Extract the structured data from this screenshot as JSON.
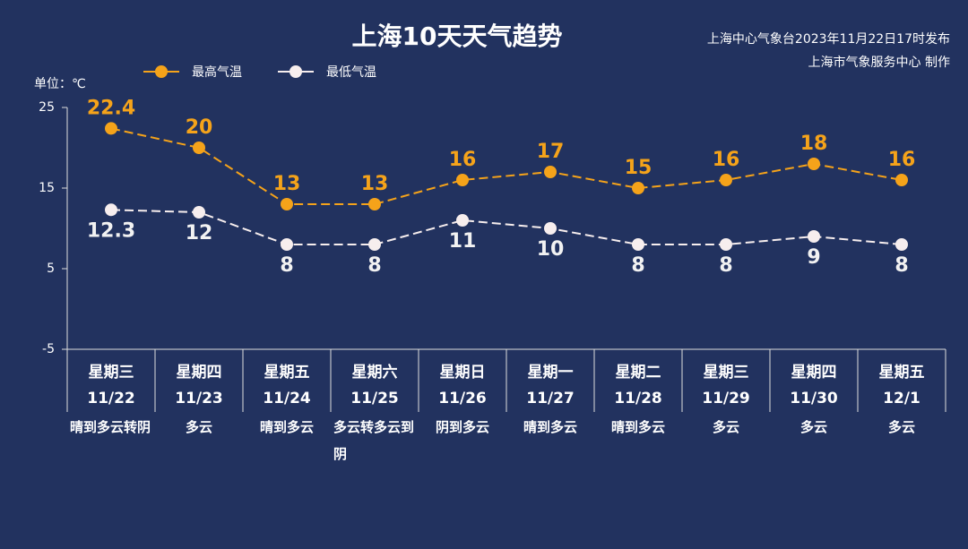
{
  "chart_data": {
    "type": "line",
    "title": "上海10天天气趋势",
    "source": "上海中心气象台2023年11月22日17时发布",
    "producer": "上海市气象服务中心 制作",
    "unit_label": "单位：℃",
    "weekdays": [
      "星期三",
      "星期四",
      "星期五",
      "星期六",
      "星期日",
      "星期一",
      "星期二",
      "星期三",
      "星期四",
      "星期五"
    ],
    "categories": [
      "11/22",
      "11/23",
      "11/24",
      "11/25",
      "11/26",
      "11/27",
      "11/28",
      "11/29",
      "11/30",
      "12/1"
    ],
    "weather": [
      "晴到多云转阴",
      "多云",
      "晴到多云",
      "多云转多云到阴",
      "阴到多云",
      "晴到多云",
      "晴到多云",
      "多云",
      "多云",
      "多云"
    ],
    "series": [
      {
        "name": "最高气温",
        "color": "#f5a31a",
        "values": [
          22.4,
          20,
          13,
          13,
          16,
          17,
          15,
          16,
          18,
          16
        ]
      },
      {
        "name": "最低气温",
        "color": "#f7eeee",
        "values": [
          12.3,
          12,
          8,
          8,
          11,
          10,
          8,
          8,
          9,
          8
        ]
      }
    ],
    "ylim": [
      -5,
      25
    ],
    "yticks": [
      -5,
      5,
      15,
      25
    ],
    "grid": false
  }
}
